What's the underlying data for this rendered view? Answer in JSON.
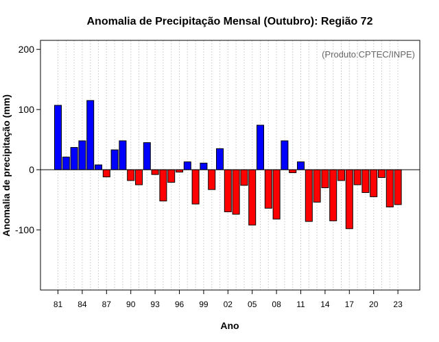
{
  "chart_data": {
    "type": "bar",
    "title": "Anomalia de Precipitação Mensal (Outubro): Região 72",
    "xlabel": "Ano",
    "ylabel": "Anomalia de precipitação (mm)",
    "annotation": "(Produto:CPTEC/INPE)",
    "ylim": [
      -200,
      215
    ],
    "yticks": [
      -100,
      0,
      100,
      200
    ],
    "ytick_labels": [
      "-100",
      "0",
      "100",
      "200"
    ],
    "categories": [
      "81",
      "82",
      "83",
      "84",
      "85",
      "86",
      "87",
      "88",
      "89",
      "90",
      "91",
      "92",
      "93",
      "94",
      "95",
      "96",
      "97",
      "98",
      "99",
      "00",
      "01",
      "02",
      "03",
      "04",
      "05",
      "06",
      "07",
      "08",
      "09",
      "10",
      "11",
      "12",
      "13",
      "14",
      "15",
      "16",
      "17",
      "18",
      "19",
      "20",
      "21",
      "22",
      "23"
    ],
    "values": [
      107,
      21,
      37,
      48,
      115,
      8,
      -12,
      33,
      48,
      -18,
      -25,
      45,
      -8,
      -52,
      -21,
      -4,
      13,
      -57,
      11,
      -33,
      35,
      -70,
      -74,
      -26,
      -92,
      74,
      -64,
      -82,
      48,
      -5,
      13,
      -86,
      -54,
      -30,
      -85,
      -18,
      -98,
      -25,
      -38,
      -45,
      -13,
      -62,
      -58
    ],
    "xtick_labels": [
      "81",
      "84",
      "87",
      "90",
      "93",
      "96",
      "99",
      "02",
      "05",
      "08",
      "11",
      "14",
      "17",
      "20",
      "23"
    ],
    "xtick_indices": [
      0,
      3,
      6,
      9,
      12,
      15,
      18,
      21,
      24,
      27,
      30,
      33,
      36,
      39,
      42
    ],
    "colors": {
      "positive": "#0000ff",
      "negative": "#ff0000",
      "bar_edge": "#000000",
      "grid": "#d3d3d3",
      "zero_line": "#000000"
    }
  }
}
